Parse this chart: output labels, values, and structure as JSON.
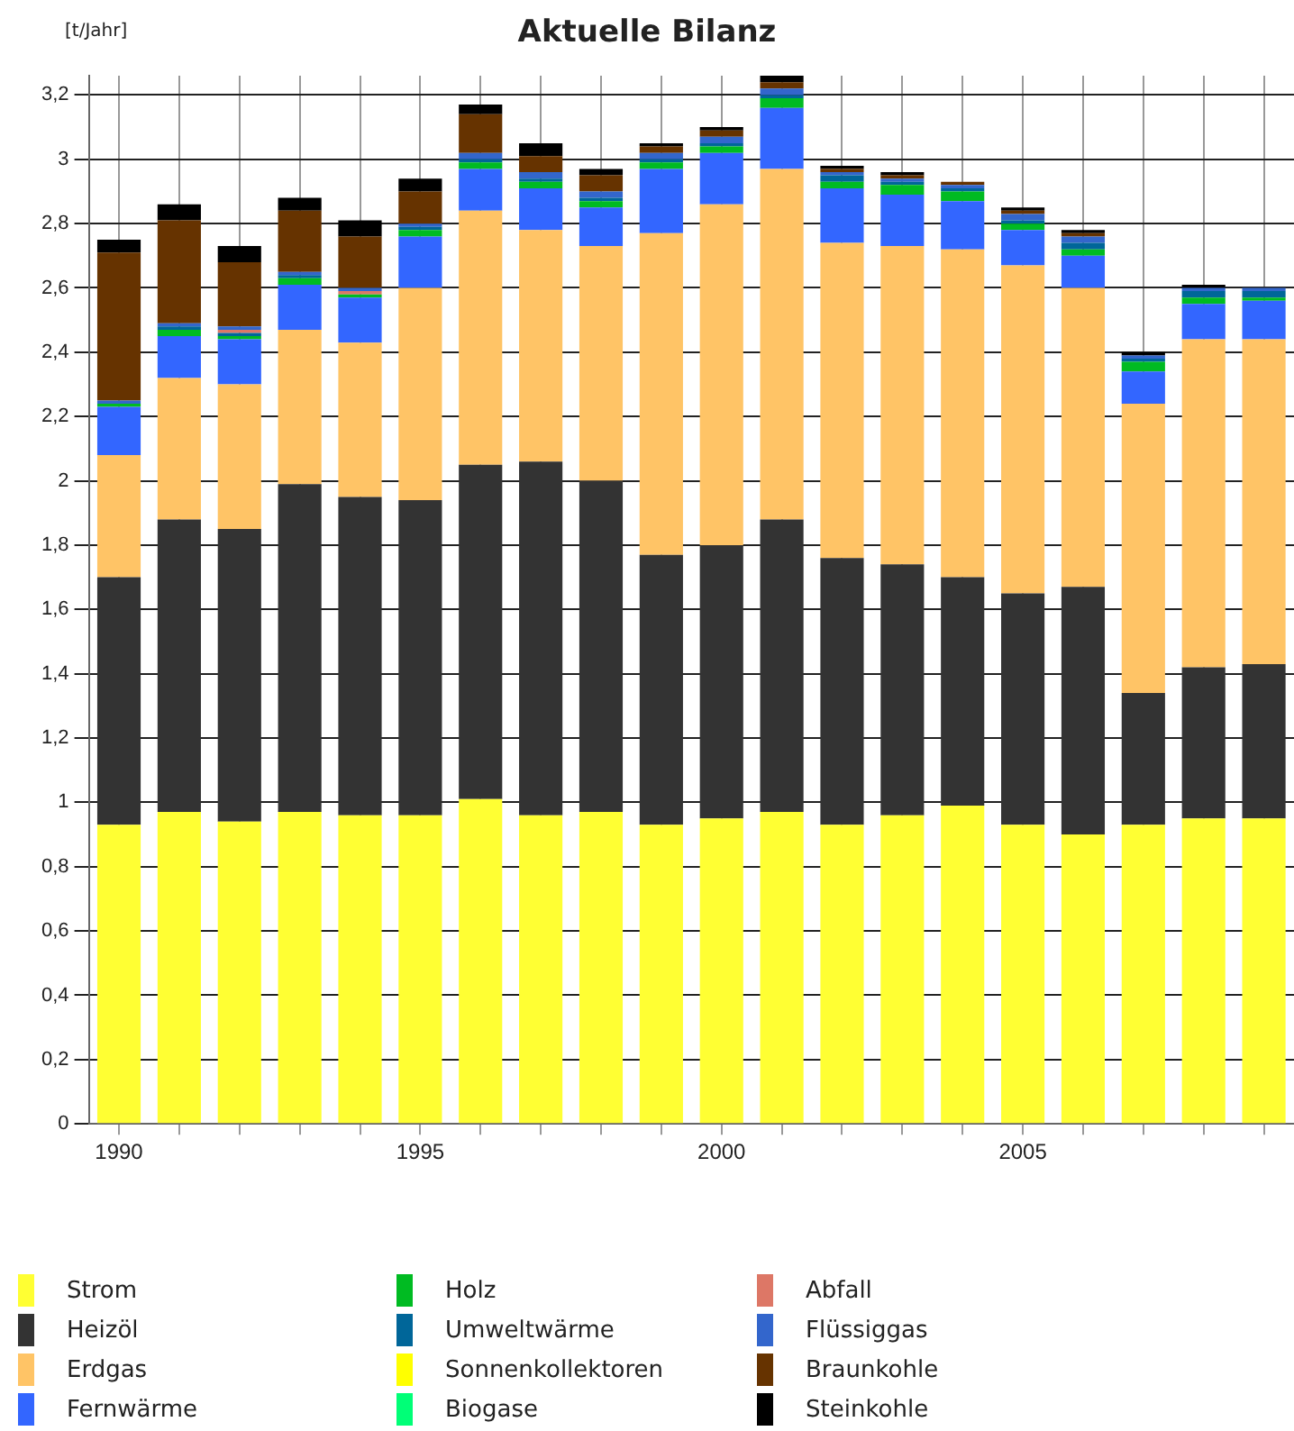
{
  "chart_data": {
    "type": "bar",
    "title": "Aktuelle Bilanz",
    "ylabel": "[t/Jahr]",
    "stacked": true,
    "grid": true,
    "legend": "bottom",
    "categories": [
      "1990",
      null,
      null,
      null,
      null,
      "1995",
      null,
      null,
      null,
      null,
      "2000",
      null,
      null,
      null,
      null,
      "2005",
      null,
      null,
      null,
      null
    ],
    "ylim": [
      0,
      3.26
    ],
    "yticks": [
      0,
      {
        "value": 0.2,
        "label": "0,2"
      },
      {
        "value": 0.4,
        "label": "0,4"
      },
      {
        "value": 0.6,
        "label": "0,6"
      },
      {
        "value": 0.8,
        "label": "0,8"
      },
      1,
      {
        "value": 1.2,
        "label": "1,2"
      },
      {
        "value": 1.4,
        "label": "1,4"
      },
      {
        "value": 1.6,
        "label": "1,6"
      },
      {
        "value": 1.8,
        "label": "1,8"
      },
      2,
      {
        "value": 2.2,
        "label": "2,2"
      },
      {
        "value": 2.4,
        "label": "2,4"
      },
      {
        "value": 2.6,
        "label": "2,6"
      },
      {
        "value": 2.8,
        "label": "2,8"
      },
      3,
      {
        "value": 3.2,
        "label": "3,2"
      }
    ],
    "series": [
      {
        "name": "Strom",
        "color": "#ffff33",
        "values": [
          0.93,
          0.97,
          0.94,
          0.97,
          0.96,
          0.96,
          1.01,
          0.96,
          0.97,
          0.93,
          0.95,
          0.97,
          0.93,
          0.96,
          0.99,
          0.93,
          0.9,
          0.93,
          0.95,
          0.95
        ]
      },
      {
        "name": "Heizöl",
        "color": "#333333",
        "values": [
          0.77,
          0.91,
          0.91,
          1.02,
          0.99,
          0.98,
          1.04,
          1.1,
          1.03,
          0.84,
          0.85,
          0.91,
          0.83,
          0.78,
          0.71,
          0.72,
          0.77,
          0.41,
          0.47,
          0.48
        ]
      },
      {
        "name": "Erdgas",
        "color": "#ffc466",
        "values": [
          0.38,
          0.44,
          0.45,
          0.48,
          0.48,
          0.66,
          0.79,
          0.72,
          0.73,
          1.0,
          1.06,
          1.09,
          0.98,
          0.99,
          1.02,
          1.02,
          0.93,
          0.9,
          1.02,
          1.01
        ]
      },
      {
        "name": "Fernwärme",
        "color": "#3366ff",
        "values": [
          0.15,
          0.13,
          0.14,
          0.14,
          0.14,
          0.16,
          0.13,
          0.13,
          0.12,
          0.2,
          0.16,
          0.19,
          0.17,
          0.16,
          0.15,
          0.11,
          0.1,
          0.1,
          0.11,
          0.12
        ]
      },
      {
        "name": "Holz",
        "color": "#00bb22",
        "values": [
          0.01,
          0.02,
          0.01,
          0.02,
          0.01,
          0.02,
          0.02,
          0.02,
          0.02,
          0.02,
          0.02,
          0.03,
          0.02,
          0.03,
          0.03,
          0.02,
          0.02,
          0.03,
          0.02,
          0.01
        ]
      },
      {
        "name": "Umweltwärme",
        "color": "#006699",
        "values": [
          0,
          0.01,
          0.01,
          0.01,
          0,
          0.01,
          0.01,
          0.01,
          0.01,
          0.01,
          0.01,
          0.01,
          0.02,
          0.01,
          0.01,
          0.01,
          0.02,
          0.01,
          0.02,
          0.02
        ]
      },
      {
        "name": "Sonnenkollektoren",
        "color": "#ffff00",
        "values": [
          0,
          0,
          0,
          0,
          0,
          0,
          0,
          0,
          0,
          0,
          0,
          0,
          0,
          0,
          0,
          0,
          0,
          0,
          0,
          0
        ]
      },
      {
        "name": "Biogase",
        "color": "#00ff77",
        "values": [
          0,
          0,
          0,
          0,
          0,
          0,
          0,
          0,
          0,
          0,
          0,
          0,
          0,
          0,
          0,
          0,
          0,
          0,
          0,
          0
        ]
      },
      {
        "name": "Abfall",
        "color": "#dd7766",
        "values": [
          0,
          0,
          0.01,
          0,
          0.01,
          0,
          0,
          0,
          0,
          0,
          0,
          0,
          0,
          0,
          0,
          0,
          0,
          0,
          0,
          0
        ]
      },
      {
        "name": "Flüssiggas",
        "color": "#3366cc",
        "values": [
          0.01,
          0.01,
          0.01,
          0.01,
          0.01,
          0.01,
          0.02,
          0.02,
          0.02,
          0.02,
          0.02,
          0.02,
          0.01,
          0.01,
          0.01,
          0.02,
          0.02,
          0.01,
          0.01,
          0.01
        ]
      },
      {
        "name": "Braunkohle",
        "color": "#663300",
        "values": [
          0.46,
          0.32,
          0.2,
          0.19,
          0.16,
          0.1,
          0.12,
          0.05,
          0.05,
          0.02,
          0.02,
          0.02,
          0.01,
          0.01,
          0.01,
          0.01,
          0.01,
          0,
          0,
          0
        ]
      },
      {
        "name": "Steinkohle",
        "color": "#000000",
        "values": [
          0.04,
          0.05,
          0.05,
          0.04,
          0.05,
          0.04,
          0.03,
          0.04,
          0.02,
          0.01,
          0.01,
          0.02,
          0.01,
          0.01,
          0,
          0.01,
          0.01,
          0.01,
          0.01,
          0
        ]
      }
    ]
  }
}
